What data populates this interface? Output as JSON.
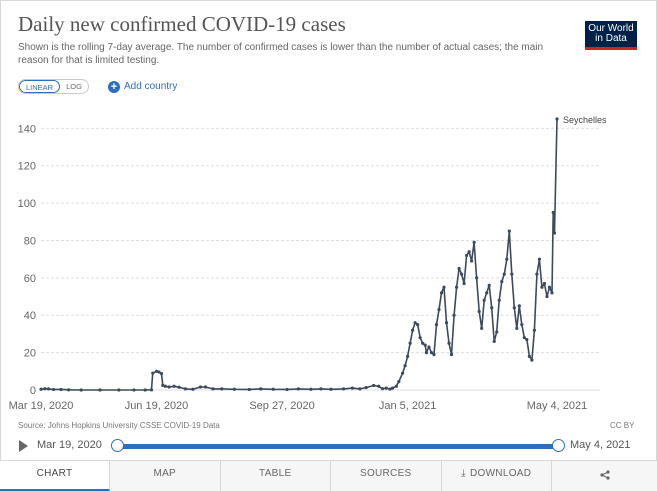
{
  "header": {
    "title": "Daily new confirmed COVID-19 cases",
    "subtitle": "Shown is the rolling 7-day average. The number of confirmed cases is lower than the number of actual cases; the main reason for that is limited testing."
  },
  "logo": {
    "line1": "Our World",
    "line2": "in Data"
  },
  "controls": {
    "scale_options": [
      "LINEAR",
      "LOG"
    ],
    "selected_scale": "LINEAR",
    "add_country_label": "Add country",
    "plus_icon": "+"
  },
  "chart_data": {
    "type": "line",
    "title": "Daily new confirmed COVID-19 cases",
    "xlabel": "",
    "ylabel": "",
    "x_range": [
      "2020-03-19",
      "2021-05-04"
    ],
    "ylim": [
      0,
      145
    ],
    "y_ticks": [
      0,
      20,
      40,
      60,
      80,
      100,
      120,
      140
    ],
    "y_tick_labels": [
      "0",
      "20",
      "40",
      "60",
      "80",
      "100",
      "120",
      "140"
    ],
    "x_ticks": [
      "2020-03-19",
      "2020-06-19",
      "2020-09-27",
      "2021-01-05",
      "2021-05-04"
    ],
    "x_tick_labels": [
      "Mar 19, 2020",
      "Jun 19, 2020",
      "Sep 27, 2020",
      "Jan 5, 2021",
      "May 4, 2021"
    ],
    "grid": "horizontal",
    "series": [
      {
        "name": "Seychelles",
        "color": "#3c4a5e",
        "points": [
          [
            "2020-03-19",
            0.4
          ],
          [
            "2020-03-22",
            0.7
          ],
          [
            "2020-03-25",
            0.6
          ],
          [
            "2020-03-29",
            0.3
          ],
          [
            "2020-04-04",
            0.3
          ],
          [
            "2020-04-10",
            0.1
          ],
          [
            "2020-04-20",
            0
          ],
          [
            "2020-05-05",
            0
          ],
          [
            "2020-05-20",
            0
          ],
          [
            "2020-06-01",
            0
          ],
          [
            "2020-06-10",
            0
          ],
          [
            "2020-06-15",
            0.1
          ],
          [
            "2020-06-16",
            9
          ],
          [
            "2020-06-19",
            10
          ],
          [
            "2020-06-21",
            9.6
          ],
          [
            "2020-06-23",
            8.8
          ],
          [
            "2020-06-24",
            2.5
          ],
          [
            "2020-06-26",
            2
          ],
          [
            "2020-06-29",
            1.6
          ],
          [
            "2020-07-03",
            2
          ],
          [
            "2020-07-07",
            1.5
          ],
          [
            "2020-07-12",
            0.6
          ],
          [
            "2020-07-18",
            0.4
          ],
          [
            "2020-07-24",
            1.6
          ],
          [
            "2020-07-28",
            1.6
          ],
          [
            "2020-08-03",
            0.6
          ],
          [
            "2020-08-10",
            0.6
          ],
          [
            "2020-08-20",
            0.4
          ],
          [
            "2020-09-01",
            0.3
          ],
          [
            "2020-09-10",
            0.6
          ],
          [
            "2020-09-20",
            0.4
          ],
          [
            "2020-10-01",
            0.3
          ],
          [
            "2020-10-10",
            0.6
          ],
          [
            "2020-10-20",
            0.4
          ],
          [
            "2020-10-28",
            0.6
          ],
          [
            "2020-11-05",
            0.4
          ],
          [
            "2020-11-15",
            0.6
          ],
          [
            "2020-11-22",
            1
          ],
          [
            "2020-11-28",
            0.6
          ],
          [
            "2020-12-03",
            1.3
          ],
          [
            "2020-12-09",
            2.4
          ],
          [
            "2020-12-13",
            2
          ],
          [
            "2020-12-16",
            0.7
          ],
          [
            "2020-12-19",
            1
          ],
          [
            "2020-12-22",
            0.5
          ],
          [
            "2020-12-24",
            1
          ],
          [
            "2020-12-27",
            2
          ],
          [
            "2020-12-29",
            4.5
          ],
          [
            "2021-01-01",
            9
          ],
          [
            "2021-01-03",
            13
          ],
          [
            "2021-01-05",
            18
          ],
          [
            "2021-01-07",
            25
          ],
          [
            "2021-01-09",
            32
          ],
          [
            "2021-01-11",
            36
          ],
          [
            "2021-01-13",
            35
          ],
          [
            "2021-01-15",
            28
          ],
          [
            "2021-01-17",
            25
          ],
          [
            "2021-01-19",
            24
          ],
          [
            "2021-01-20",
            20
          ],
          [
            "2021-01-22",
            23
          ],
          [
            "2021-01-24",
            20
          ],
          [
            "2021-01-26",
            19
          ],
          [
            "2021-01-28",
            35
          ],
          [
            "2021-01-30",
            43
          ],
          [
            "2021-02-01",
            52
          ],
          [
            "2021-02-03",
            55
          ],
          [
            "2021-02-05",
            36
          ],
          [
            "2021-02-07",
            25
          ],
          [
            "2021-02-09",
            19
          ],
          [
            "2021-02-11",
            40
          ],
          [
            "2021-02-13",
            55
          ],
          [
            "2021-02-15",
            65
          ],
          [
            "2021-02-17",
            62
          ],
          [
            "2021-02-19",
            57
          ],
          [
            "2021-02-21",
            72
          ],
          [
            "2021-02-23",
            74
          ],
          [
            "2021-02-25",
            69
          ],
          [
            "2021-02-27",
            79
          ],
          [
            "2021-03-01",
            60
          ],
          [
            "2021-03-03",
            42
          ],
          [
            "2021-03-05",
            33
          ],
          [
            "2021-03-07",
            48
          ],
          [
            "2021-03-09",
            52
          ],
          [
            "2021-03-11",
            56
          ],
          [
            "2021-03-13",
            44
          ],
          [
            "2021-03-15",
            26
          ],
          [
            "2021-03-17",
            31
          ],
          [
            "2021-03-19",
            48
          ],
          [
            "2021-03-21",
            58
          ],
          [
            "2021-03-23",
            62
          ],
          [
            "2021-03-25",
            70
          ],
          [
            "2021-03-27",
            85
          ],
          [
            "2021-03-29",
            62
          ],
          [
            "2021-03-31",
            44
          ],
          [
            "2021-04-02",
            33
          ],
          [
            "2021-04-04",
            45
          ],
          [
            "2021-04-06",
            35
          ],
          [
            "2021-04-08",
            28
          ],
          [
            "2021-04-10",
            27
          ],
          [
            "2021-04-12",
            18
          ],
          [
            "2021-04-14",
            16
          ],
          [
            "2021-04-16",
            32
          ],
          [
            "2021-04-18",
            62
          ],
          [
            "2021-04-20",
            70
          ],
          [
            "2021-04-22",
            55
          ],
          [
            "2021-04-24",
            57
          ],
          [
            "2021-04-26",
            50
          ],
          [
            "2021-04-28",
            55
          ],
          [
            "2021-04-30",
            52
          ],
          [
            "2021-05-01",
            95
          ],
          [
            "2021-05-02",
            84
          ],
          [
            "2021-05-04",
            145
          ]
        ]
      }
    ]
  },
  "footer": {
    "source": "Source: Johns Hopkins University CSSE COVID-19 Data",
    "license": "CC BY"
  },
  "timeline": {
    "start_label": "Mar 19, 2020",
    "end_label": "May 4, 2021",
    "play_icon": "play-icon"
  },
  "tabs": [
    {
      "label": "CHART",
      "active": true
    },
    {
      "label": "MAP",
      "active": false
    },
    {
      "label": "TABLE",
      "active": false
    },
    {
      "label": "SOURCES",
      "active": false
    },
    {
      "label": "DOWNLOAD",
      "active": false
    }
  ],
  "download_icon": "⤓",
  "share_icon": "share-icon"
}
